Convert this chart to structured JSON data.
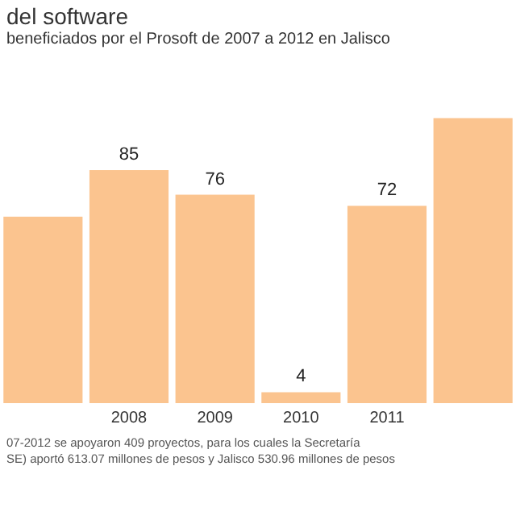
{
  "chart_data": {
    "type": "bar",
    "title": "del software",
    "subtitle": "beneficiados por el Prosoft de 2007 a 2012 en Jalisco",
    "categories": [
      null,
      "2008",
      "2009",
      "2010",
      "2011",
      null
    ],
    "values": [
      68,
      85,
      76,
      4,
      72,
      104
    ],
    "value_labels": [
      null,
      "85",
      "76",
      "4",
      "72",
      null
    ],
    "color": "#fbc48f",
    "annotations": [
      "07-2012 se apoyaron 409 proyectos, para los cuales la Secretaría",
      "SE) aportó 613.07 millones de pesos y Jalisco 530.96 millones de pesos"
    ],
    "grid": false,
    "legend": false
  }
}
